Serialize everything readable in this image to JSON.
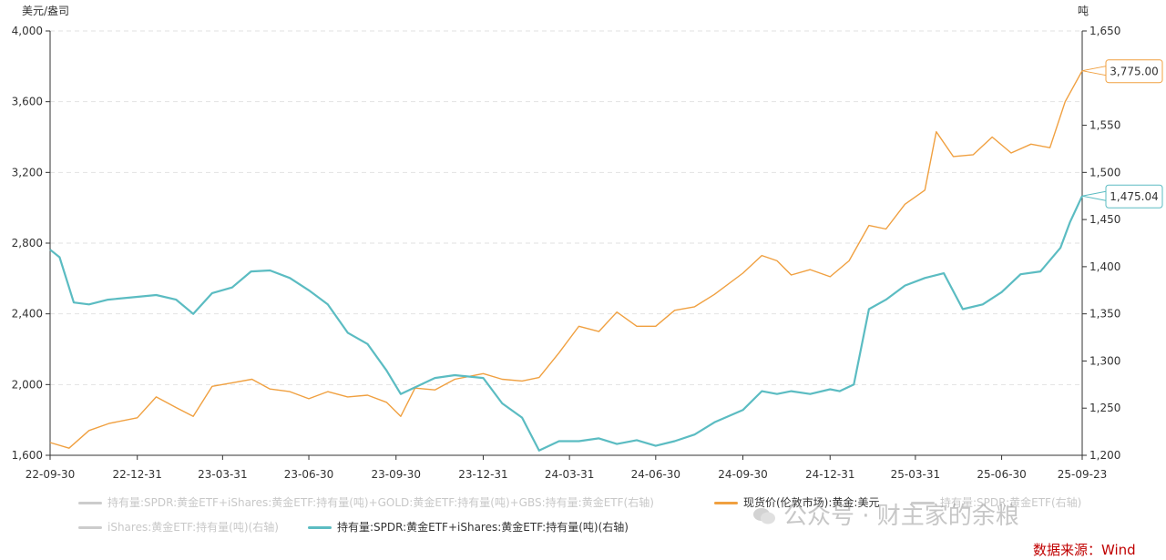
{
  "chart_data": {
    "type": "line",
    "left_axis_unit": "美元/盎司",
    "right_axis_unit": "吨",
    "left_ylim": [
      1600,
      4000
    ],
    "left_yticks": [
      "1,600",
      "2,000",
      "2,400",
      "2,800",
      "3,200",
      "3,600",
      "4,000"
    ],
    "right_ylim": [
      1200,
      1650
    ],
    "right_yticks": [
      "1,200",
      "1,250",
      "1,300",
      "1,350",
      "1,400",
      "1,450",
      "1,500",
      "1,550",
      "1,650"
    ],
    "x_ticks": [
      "22-09-30",
      "22-12-31",
      "23-03-31",
      "23-06-30",
      "23-09-30",
      "23-12-31",
      "24-03-31",
      "24-06-30",
      "24-09-30",
      "24-12-31",
      "25-03-31",
      "25-06-30",
      "25-09-23"
    ],
    "grid": true,
    "series": [
      {
        "name": "现货价(伦敦市场):黄金:美元",
        "axis": "left",
        "color": "#f0a040",
        "end_label": "3,775.00",
        "x": [
          "22-09-30",
          "22-10-20",
          "22-11-10",
          "22-12-01",
          "22-12-31",
          "23-01-20",
          "23-02-10",
          "23-02-28",
          "23-03-20",
          "23-04-10",
          "23-05-01",
          "23-05-20",
          "23-06-10",
          "23-06-30",
          "23-07-20",
          "23-08-10",
          "23-08-31",
          "23-09-20",
          "23-10-05",
          "23-10-20",
          "23-11-10",
          "23-12-01",
          "23-12-31",
          "24-01-20",
          "24-02-10",
          "24-02-28",
          "24-03-20",
          "24-04-10",
          "24-05-01",
          "24-05-20",
          "24-06-10",
          "24-06-30",
          "24-07-20",
          "24-08-10",
          "24-08-31",
          "24-09-30",
          "24-10-20",
          "24-11-05",
          "24-11-20",
          "24-12-10",
          "24-12-31",
          "25-01-20",
          "25-02-10",
          "25-02-28",
          "25-03-20",
          "25-04-10",
          "25-04-22",
          "25-05-10",
          "25-05-31",
          "25-06-20",
          "25-07-10",
          "25-07-31",
          "25-08-20",
          "25-09-05",
          "25-09-23"
        ],
        "values": [
          1672,
          1640,
          1740,
          1780,
          1812,
          1930,
          1870,
          1820,
          1990,
          2010,
          2030,
          1975,
          1960,
          1920,
          1960,
          1930,
          1940,
          1900,
          1820,
          1980,
          1970,
          2030,
          2062,
          2030,
          2020,
          2040,
          2180,
          2330,
          2300,
          2410,
          2330,
          2330,
          2420,
          2440,
          2510,
          2630,
          2730,
          2700,
          2620,
          2650,
          2610,
          2700,
          2900,
          2880,
          3020,
          3100,
          3430,
          3290,
          3300,
          3400,
          3310,
          3360,
          3340,
          3600,
          3775
        ]
      },
      {
        "name": "持有量:SPDR:黄金ETF+iShares:黄金ETF:持有量(吨)(右轴)",
        "axis": "right",
        "color": "#5bbcc2",
        "end_label": "1,475.04",
        "x": [
          "22-09-30",
          "22-10-10",
          "22-10-25",
          "22-11-10",
          "22-11-30",
          "22-12-31",
          "23-01-20",
          "23-02-10",
          "23-02-28",
          "23-03-20",
          "23-04-10",
          "23-04-30",
          "23-05-20",
          "23-06-10",
          "23-06-30",
          "23-07-20",
          "23-08-10",
          "23-08-31",
          "23-09-20",
          "23-10-05",
          "23-10-20",
          "23-11-10",
          "23-12-01",
          "23-12-31",
          "24-01-20",
          "24-02-10",
          "24-02-28",
          "24-03-20",
          "24-04-10",
          "24-05-01",
          "24-05-20",
          "24-06-10",
          "24-06-30",
          "24-07-20",
          "24-08-10",
          "24-08-31",
          "24-09-30",
          "24-10-20",
          "24-11-05",
          "24-11-20",
          "24-12-10",
          "24-12-31",
          "25-01-10",
          "25-01-25",
          "25-02-10",
          "25-02-28",
          "25-03-20",
          "25-04-10",
          "25-04-30",
          "25-05-20",
          "25-06-10",
          "25-06-30",
          "25-07-20",
          "25-08-10",
          "25-08-31",
          "25-09-10",
          "25-09-23"
        ],
        "values": [
          1418,
          1410,
          1362,
          1360,
          1365,
          1368,
          1370,
          1365,
          1350,
          1372,
          1378,
          1395,
          1396,
          1388,
          1375,
          1360,
          1330,
          1318,
          1290,
          1265,
          1272,
          1282,
          1285,
          1282,
          1255,
          1240,
          1205,
          1215,
          1215,
          1218,
          1212,
          1216,
          1210,
          1215,
          1222,
          1235,
          1248,
          1268,
          1265,
          1268,
          1265,
          1270,
          1268,
          1275,
          1355,
          1365,
          1380,
          1388,
          1393,
          1355,
          1360,
          1373,
          1392,
          1395,
          1420,
          1447,
          1475
        ]
      }
    ],
    "legend": [
      {
        "label": "持有量:SPDR:黄金ETF+iShares:黄金ETF:持有量(吨)+GOLD:黄金ETF:持有量(吨)+GBS:持有量:黄金ETF(右轴)",
        "color": "#cccccc",
        "active": false
      },
      {
        "label": "现货价(伦敦市场):黄金:美元",
        "color": "#f0a040",
        "active": true
      },
      {
        "label": "持有量:SPDR:黄金ETF(右轴)",
        "color": "#cccccc",
        "active": false
      },
      {
        "label": "iShares:黄金ETF:持有量(吨)(右轴)",
        "color": "#cccccc",
        "active": false
      },
      {
        "label": "持有量:SPDR:黄金ETF+iShares:黄金ETF:持有量(吨)(右轴)",
        "color": "#5bbcc2",
        "active": true
      }
    ]
  },
  "watermark": "公众号 · 财主家的余粮",
  "source": "数据来源：Wind"
}
